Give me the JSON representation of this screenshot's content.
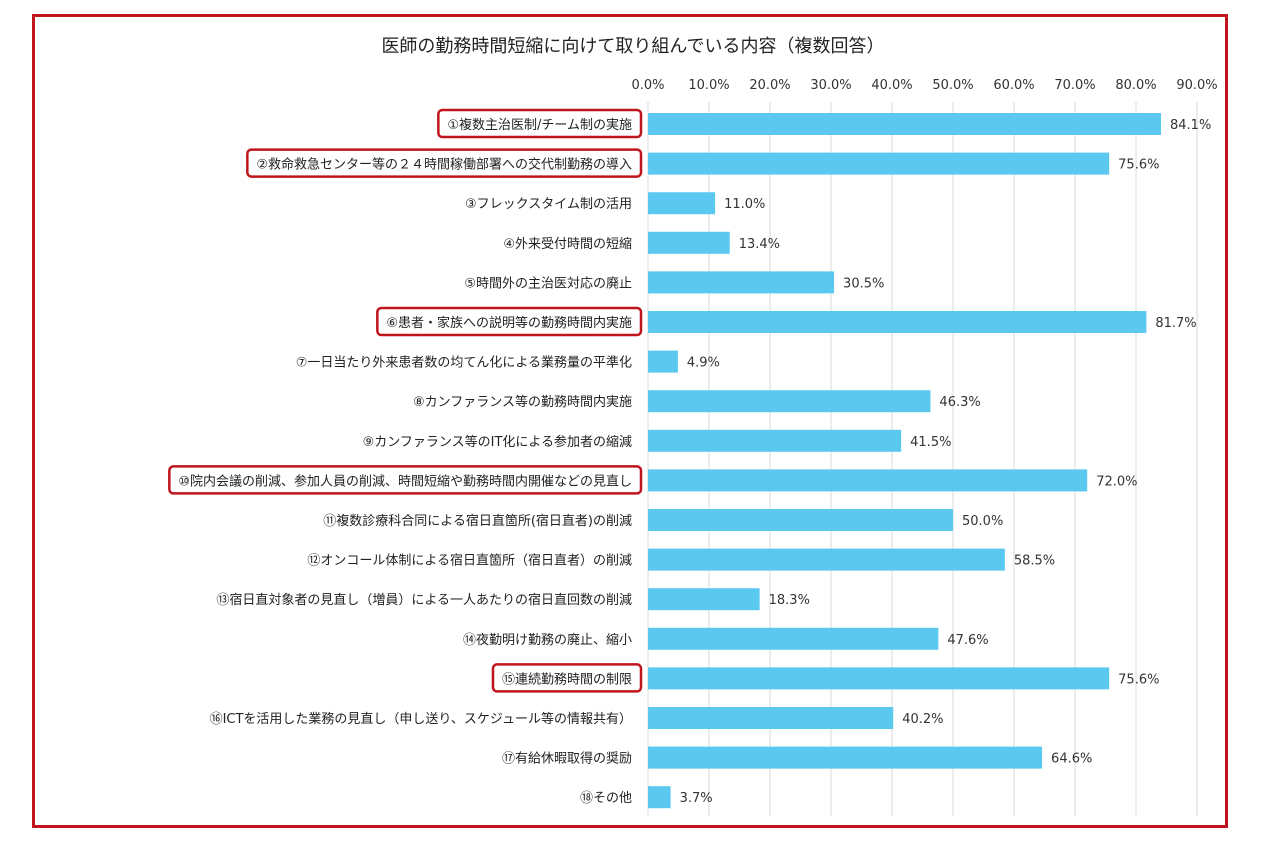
{
  "chart_data": {
    "type": "bar",
    "orientation": "horizontal",
    "title": "医師の勤務時間短縮に向けて取り組んでいる内容（複数回答）",
    "xlim": [
      0,
      90
    ],
    "ticks": [
      "0.0%",
      "10.0%",
      "20.0%",
      "30.0%",
      "40.0%",
      "50.0%",
      "60.0%",
      "70.0%",
      "80.0%",
      "90.0%"
    ],
    "grid": true,
    "bar_color": "#5bc8ef",
    "highlight_color": "#c0151c",
    "categories": [
      "①複数主治医制/チーム制の実施",
      "②救命救急センター等の２４時間稼働部署への交代制勤務の導入",
      "③フレックスタイム制の活用",
      "④外来受付時間の短縮",
      "⑤時間外の主治医対応の廃止",
      "⑥患者・家族への説明等の勤務時間内実施",
      "⑦一日当たり外来患者数の均てん化による業務量の平準化",
      "⑧カンファランス等の勤務時間内実施",
      "⑨カンファランス等のIT化による参加者の縮減",
      "⑩院内会議の削減、参加人員の削減、時間短縮や勤務時間内開催などの見直し",
      "⑪複数診療科合同による宿日直箇所(宿日直者)の削減",
      "⑫オンコール体制による宿日直箇所（宿日直者）の削減",
      "⑬宿日直対象者の見直し（増員）による一人あたりの宿日直回数の削減",
      "⑭夜勤明け勤務の廃止、縮小",
      "⑮連続勤務時間の制限",
      "⑯ICTを活用した業務の見直し（申し送り、スケジュール等の情報共有）",
      "⑰有給休暇取得の奨励",
      "⑱その他"
    ],
    "values": [
      84.1,
      75.6,
      11.0,
      13.4,
      30.5,
      81.7,
      4.9,
      46.3,
      41.5,
      72.0,
      50.0,
      58.5,
      18.3,
      47.6,
      75.6,
      40.2,
      64.6,
      3.7
    ],
    "value_labels": [
      "84.1%",
      "75.6%",
      "11.0%",
      "13.4%",
      "30.5%",
      "81.7%",
      "4.9%",
      "46.3%",
      "41.5%",
      "72.0%",
      "50.0%",
      "58.5%",
      "18.3%",
      "47.6%",
      "75.6%",
      "40.2%",
      "64.6%",
      "3.7%"
    ],
    "highlighted": [
      true,
      true,
      false,
      false,
      false,
      true,
      false,
      false,
      false,
      true,
      false,
      false,
      false,
      false,
      true,
      false,
      false,
      false
    ]
  }
}
